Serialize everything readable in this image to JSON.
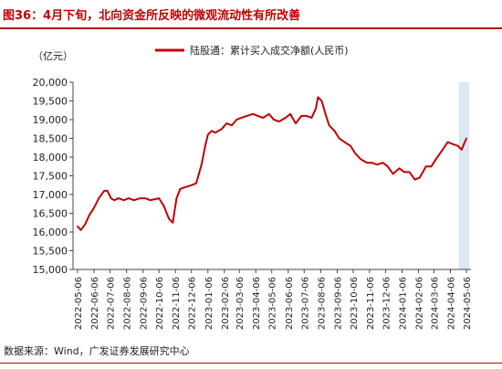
{
  "header": {
    "title": "图36：4月下旬，北向资金所反映的微观流动性有所改善"
  },
  "footer": {
    "source": "数据来源：Wind，广发证券发展研究中心"
  },
  "colors": {
    "accent": "#c00000",
    "series": "#c00000",
    "highlight": "#dbe8f5"
  },
  "chart_data": {
    "type": "line",
    "title": "",
    "ylabel": "（亿元）",
    "xlabel": "",
    "ylim": [
      15000,
      20000
    ],
    "yticks": [
      15000,
      15500,
      16000,
      16500,
      17000,
      17500,
      18000,
      18500,
      19000,
      19500,
      20000
    ],
    "ytick_labels": [
      "15,000",
      "15,500",
      "16,000",
      "16,500",
      "17,000",
      "17,500",
      "18,000",
      "18,500",
      "19,000",
      "19,500",
      "20,000"
    ],
    "xtick_labels": [
      "2022-05-06",
      "2022-06-06",
      "2022-07-06",
      "2022-08-06",
      "2022-09-06",
      "2022-10-06",
      "2022-11-06",
      "2022-12-06",
      "2023-01-06",
      "2023-02-06",
      "2023-03-06",
      "2023-04-06",
      "2023-05-06",
      "2023-06-06",
      "2023-07-06",
      "2023-08-06",
      "2023-09-06",
      "2023-10-06",
      "2023-11-06",
      "2023-12-06",
      "2024-01-06",
      "2024-02-06",
      "2024-03-06",
      "2024-04-06",
      "2024-05-06"
    ],
    "legend_position": "top-center",
    "grid": false,
    "highlight_range": [
      "2024-04-22",
      "2024-05-06"
    ],
    "series": [
      {
        "name": "陆股通：累计买入成交净额(人民币)",
        "x": [
          "2022-05-06",
          "2022-05-12",
          "2022-05-20",
          "2022-05-28",
          "2022-06-06",
          "2022-06-15",
          "2022-06-25",
          "2022-07-01",
          "2022-07-08",
          "2022-07-14",
          "2022-07-22",
          "2022-08-01",
          "2022-08-10",
          "2022-08-20",
          "2022-09-01",
          "2022-09-10",
          "2022-09-20",
          "2022-10-06",
          "2022-10-15",
          "2022-10-25",
          "2022-11-01",
          "2022-11-08",
          "2022-11-15",
          "2022-11-25",
          "2022-12-06",
          "2022-12-15",
          "2022-12-25",
          "2023-01-01",
          "2023-01-06",
          "2023-01-13",
          "2023-01-20",
          "2023-02-01",
          "2023-02-10",
          "2023-02-20",
          "2023-03-01",
          "2023-03-10",
          "2023-03-20",
          "2023-04-01",
          "2023-04-10",
          "2023-04-20",
          "2023-05-01",
          "2023-05-10",
          "2023-05-20",
          "2023-06-01",
          "2023-06-10",
          "2023-06-20",
          "2023-07-01",
          "2023-07-10",
          "2023-07-20",
          "2023-07-28",
          "2023-08-01",
          "2023-08-08",
          "2023-08-15",
          "2023-08-22",
          "2023-09-01",
          "2023-09-10",
          "2023-09-20",
          "2023-10-01",
          "2023-10-10",
          "2023-10-20",
          "2023-11-01",
          "2023-11-10",
          "2023-11-20",
          "2023-12-01",
          "2023-12-10",
          "2023-12-20",
          "2024-01-01",
          "2024-01-10",
          "2024-01-20",
          "2024-01-30",
          "2024-02-08",
          "2024-02-20",
          "2024-03-01",
          "2024-03-10",
          "2024-03-20",
          "2024-04-01",
          "2024-04-10",
          "2024-04-20",
          "2024-04-27",
          "2024-05-06"
        ],
        "values": [
          16150,
          16050,
          16200,
          16450,
          16650,
          16900,
          17100,
          17100,
          16900,
          16850,
          16900,
          16850,
          16900,
          16850,
          16900,
          16900,
          16850,
          16900,
          16700,
          16350,
          16250,
          16900,
          17150,
          17200,
          17250,
          17300,
          17800,
          18300,
          18600,
          18700,
          18650,
          18750,
          18900,
          18850,
          19000,
          19050,
          19100,
          19150,
          19100,
          19050,
          19150,
          19000,
          18950,
          19050,
          19150,
          18900,
          19100,
          19100,
          19050,
          19300,
          19600,
          19500,
          19150,
          18850,
          18700,
          18500,
          18400,
          18300,
          18100,
          17950,
          17850,
          17850,
          17800,
          17850,
          17750,
          17550,
          17700,
          17600,
          17600,
          17400,
          17450,
          17750,
          17750,
          17950,
          18150,
          18400,
          18350,
          18300,
          18200,
          18500
        ]
      }
    ]
  }
}
